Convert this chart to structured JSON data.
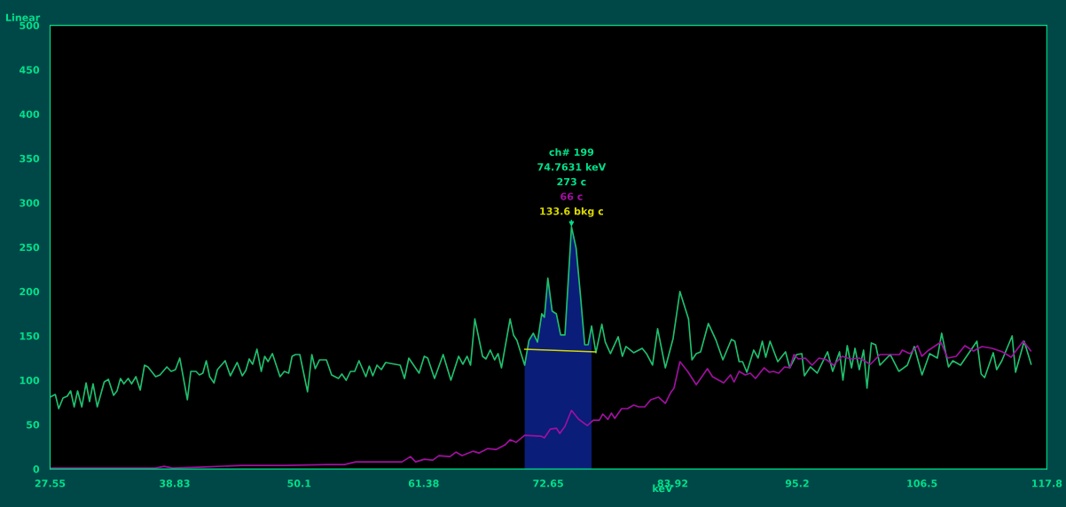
{
  "chart_data": {
    "type": "line",
    "xlabel": "keV",
    "ylabel": "Linear",
    "xlim": [
      27.55,
      117.8
    ],
    "xticks": [
      27.55,
      38.83,
      50.1,
      61.38,
      72.65,
      83.92,
      95.2,
      106.5,
      117.8
    ],
    "ylim": [
      0,
      500
    ],
    "yticks": [
      0,
      50,
      100,
      150,
      200,
      250,
      300,
      350,
      400,
      450,
      500
    ],
    "grid": false,
    "legend": false,
    "series": [
      {
        "color": "#1fbf6e",
        "x": [
          27.55,
          28.02,
          28.33,
          28.72,
          29.1,
          29.41,
          29.73,
          30.04,
          30.42,
          30.81,
          31.12,
          31.44,
          31.82,
          32.45,
          32.83,
          33.3,
          33.61,
          33.92,
          34.23,
          34.62,
          34.93,
          35.32,
          35.71,
          36.1,
          36.41,
          37.11,
          37.5,
          38.12,
          38.51,
          38.9,
          39.29,
          39.98,
          40.29,
          40.76,
          41.07,
          41.38,
          41.69,
          42.0,
          42.39,
          42.7,
          43.4,
          43.87,
          44.49,
          44.95,
          45.27,
          45.58,
          45.89,
          46.28,
          46.67,
          46.98,
          47.29,
          47.68,
          48.37,
          48.76,
          49.15,
          49.46,
          49.77,
          50.16,
          50.86,
          51.25,
          51.56,
          51.95,
          52.57,
          53.04,
          53.66,
          53.97,
          54.36,
          54.75,
          55.13,
          55.52,
          55.83,
          56.14,
          56.45,
          56.77,
          57.15,
          57.54,
          57.93,
          59.25,
          59.64,
          60.03,
          60.96,
          61.43,
          61.74,
          62.36,
          63.14,
          63.84,
          64.54,
          64.92,
          65.31,
          65.62,
          66.01,
          66.71,
          67.02,
          67.41,
          67.8,
          68.11,
          68.42,
          69.2,
          69.51,
          69.82,
          70.52,
          70.91,
          71.3,
          71.68,
          72.07,
          72.31,
          72.62,
          73.01,
          73.39,
          73.78,
          74.17,
          74.76,
          75.18,
          75.57,
          75.96,
          76.27,
          76.58,
          76.97,
          77.51,
          77.82,
          78.29,
          78.99,
          79.37,
          79.69,
          80.39,
          81.16,
          81.55,
          82.1,
          82.56,
          83.26,
          83.96,
          84.58,
          85.36,
          85.67,
          86.06,
          86.45,
          87.15,
          87.85,
          88.47,
          89.24,
          89.55,
          89.94,
          90.25,
          90.64,
          91.26,
          91.65,
          92.04,
          92.35,
          92.74,
          93.44,
          94.14,
          94.53,
          95.15,
          95.62,
          95.85,
          96.39,
          97.01,
          97.95,
          98.41,
          99.03,
          99.34,
          99.73,
          100.12,
          100.43,
          100.82,
          101.21,
          101.52,
          101.91,
          102.3,
          102.69,
          103.62,
          104.4,
          105.17,
          105.8,
          106.5,
          107.19,
          107.89,
          108.28,
          108.9,
          109.29,
          109.99,
          111.47,
          111.86,
          112.17,
          112.95,
          113.26,
          113.73,
          114.66,
          114.97,
          115.75,
          116.38
        ],
        "values": [
          81,
          84,
          68,
          80,
          82,
          88,
          70,
          88,
          70,
          97,
          76,
          96,
          70,
          98,
          101,
          83,
          88,
          102,
          96,
          102,
          96,
          104,
          89,
          117,
          115,
          104,
          106,
          115,
          110,
          112,
          125,
          78,
          110,
          110,
          106,
          108,
          122,
          104,
          97,
          112,
          122,
          105,
          120,
          105,
          111,
          124,
          118,
          135,
          110,
          127,
          121,
          130,
          104,
          110,
          108,
          127,
          129,
          129,
          87,
          129,
          113,
          123,
          123,
          106,
          102,
          107,
          100,
          110,
          110,
          122,
          113,
          104,
          116,
          105,
          117,
          112,
          120,
          117,
          102,
          125,
          108,
          127,
          125,
          102,
          129,
          100,
          127,
          118,
          127,
          117,
          169,
          127,
          124,
          134,
          123,
          130,
          114,
          169,
          151,
          145,
          117,
          145,
          153,
          143,
          175,
          171,
          215,
          178,
          175,
          151,
          151,
          273,
          249,
          196,
          140,
          140,
          161,
          131,
          163,
          143,
          130,
          149,
          127,
          138,
          131,
          136,
          130,
          117,
          158,
          114,
          147,
          200,
          169,
          123,
          130,
          132,
          164,
          145,
          123,
          146,
          144,
          121,
          121,
          109,
          134,
          125,
          144,
          126,
          144,
          121,
          132,
          114,
          129,
          130,
          105,
          115,
          108,
          132,
          110,
          132,
          100,
          139,
          114,
          136,
          112,
          134,
          91,
          142,
          140,
          117,
          129,
          110,
          117,
          138,
          106,
          130,
          125,
          153,
          115,
          122,
          117,
          144,
          107,
          103,
          131,
          112,
          122,
          150,
          109,
          144,
          118
        ]
      },
      {
        "color": "#a010a0",
        "x": [
          27.55,
          37.11,
          37.88,
          38.66,
          41.0,
          44.88,
          48.76,
          52.65,
          54.2,
          55.21,
          56.3,
          57.31,
          58.32,
          59.41,
          60.18,
          60.65,
          61.43,
          62.2,
          62.75,
          63.76,
          64.3,
          64.85,
          65.86,
          66.4,
          67.18,
          67.95,
          68.73,
          69.2,
          69.74,
          70.52,
          71.99,
          72.31,
          72.85,
          73.39,
          73.7,
          74.17,
          74.76,
          75.41,
          76.19,
          76.73,
          77.28,
          77.59,
          78.06,
          78.37,
          78.68,
          79.3,
          79.84,
          80.39,
          80.85,
          81.4,
          81.94,
          82.64,
          83.26,
          83.73,
          84.04,
          84.58,
          85.28,
          86.06,
          87.07,
          87.53,
          88.54,
          89.16,
          89.48,
          89.94,
          90.49,
          90.95,
          91.42,
          92.2,
          92.66,
          93.05,
          93.52,
          94.06,
          94.53,
          94.91,
          95.3,
          95.93,
          96.55,
          97.17,
          97.87,
          98.49,
          99.27,
          100.04,
          100.82,
          101.83,
          102.69,
          103.39,
          104.47,
          104.71,
          105.4,
          106.1,
          106.49,
          107.11,
          108.2,
          108.82,
          109.6,
          110.38,
          111.16,
          111.93,
          112.86,
          113.79,
          114.57,
          115.66,
          116.36
        ],
        "values": [
          1,
          1,
          3,
          1,
          2,
          4,
          4,
          5,
          5,
          8,
          8,
          8,
          8,
          8,
          14,
          8,
          11,
          10,
          15,
          14,
          19,
          15,
          20,
          18,
          23,
          22,
          27,
          33,
          30,
          38,
          37,
          35,
          45,
          46,
          40,
          48,
          66,
          56,
          49,
          55,
          55,
          62,
          56,
          63,
          57,
          68,
          68,
          72,
          70,
          70,
          78,
          81,
          74,
          86,
          91,
          121,
          110,
          95,
          113,
          104,
          97,
          106,
          98,
          110,
          106,
          108,
          102,
          114,
          109,
          110,
          108,
          115,
          114,
          129,
          124,
          125,
          117,
          125,
          123,
          117,
          127,
          124,
          125,
          118,
          129,
          129,
          129,
          134,
          130,
          139,
          127,
          134,
          143,
          125,
          127,
          139,
          133,
          138,
          136,
          132,
          126,
          144,
          133
        ]
      },
      {
        "color": "#d8d800",
        "x": [
          70.52,
          76.97
        ],
        "values": [
          135,
          132
        ]
      },
      {
        "type": "area",
        "color": "#1030c8",
        "x": [
          70.52,
          70.91,
          71.3,
          71.68,
          72.07,
          72.31,
          72.62,
          73.01,
          73.39,
          73.78,
          74.17,
          74.76,
          75.18,
          75.57,
          75.96,
          76.27,
          76.58
        ],
        "values": [
          117,
          145,
          153,
          143,
          175,
          171,
          215,
          178,
          175,
          151,
          151,
          273,
          249,
          196,
          140,
          140,
          161
        ]
      }
    ],
    "annotations": [
      "ch# 199",
      "74.7631 keV",
      "273 c",
      "66 c",
      {
        "text": "133.6 bkg c",
        "x": 74.76,
        "y": 273
      }
    ]
  }
}
